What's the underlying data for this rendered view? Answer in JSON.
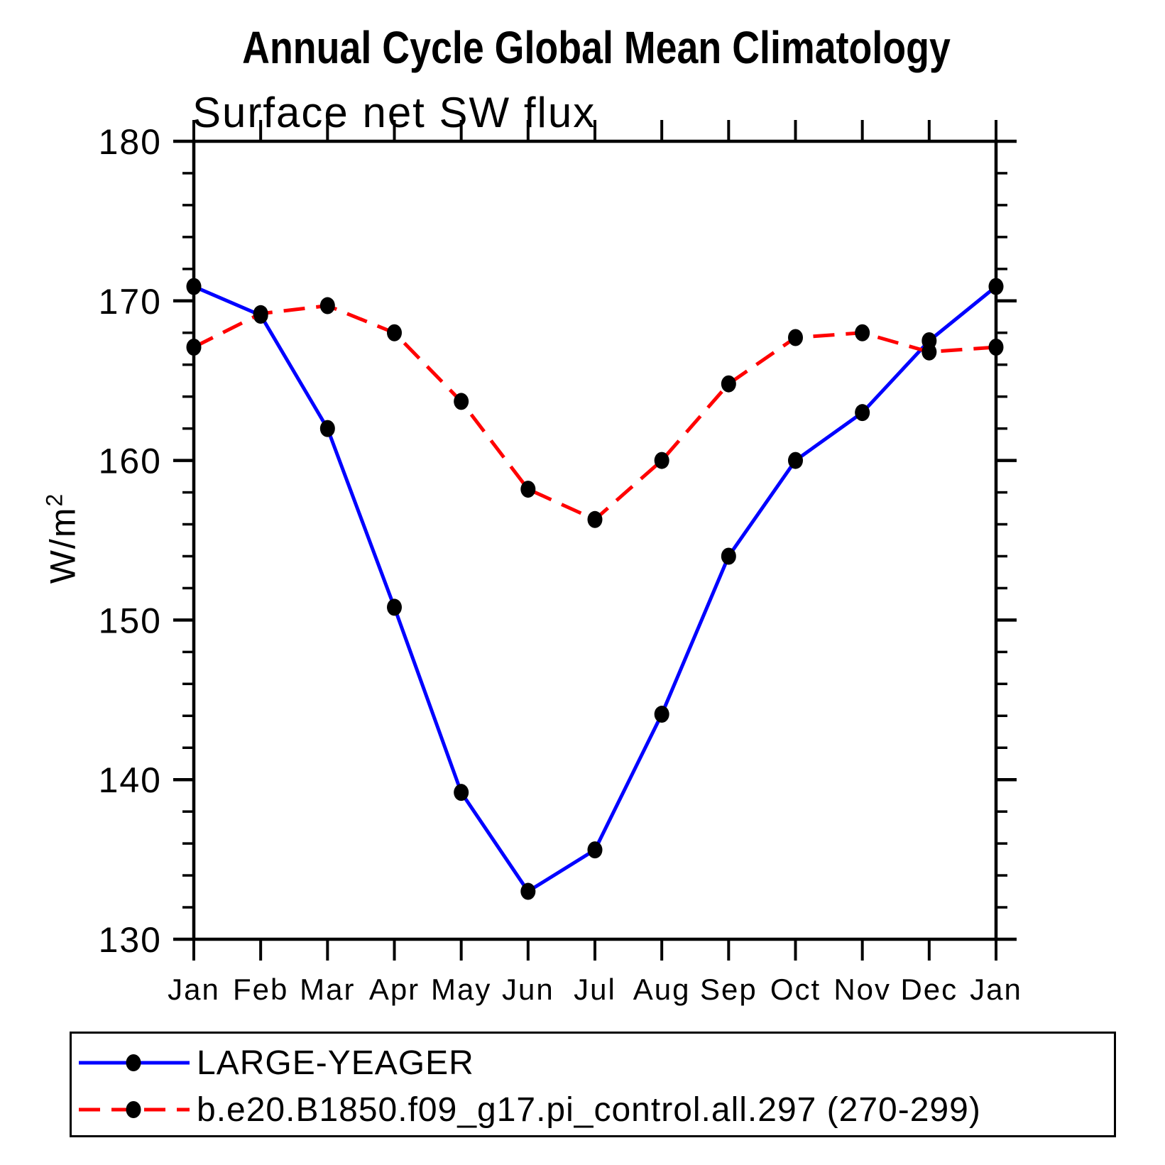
{
  "title": "Annual Cycle Global Mean Climatology",
  "subtitle": "Surface net SW flux",
  "y_axis": {
    "label_base": "W/m",
    "label_exponent": "2",
    "tick_labels": [
      "180",
      "170",
      "160",
      "150",
      "140",
      "130"
    ],
    "major_ticks": [
      180,
      170,
      160,
      150,
      140,
      130
    ],
    "minor_step": 2,
    "range": [
      130,
      180
    ]
  },
  "x_axis": {
    "labels": [
      "Jan",
      "Feb",
      "Mar",
      "Apr",
      "May",
      "Jun",
      "Jul",
      "Aug",
      "Sep",
      "Oct",
      "Nov",
      "Dec",
      "Jan"
    ]
  },
  "colors": {
    "series1": "#0000ff",
    "series2": "#ff0000",
    "marker": "#000000",
    "axis": "#000000"
  },
  "chart_data": {
    "type": "line",
    "x": [
      "Jan",
      "Feb",
      "Mar",
      "Apr",
      "May",
      "Jun",
      "Jul",
      "Aug",
      "Sep",
      "Oct",
      "Nov",
      "Dec",
      "Jan"
    ],
    "series": [
      {
        "name": "LARGE-YEAGER",
        "color": "#0000ff",
        "line_style": "solid",
        "marker": "filled-circle",
        "values": [
          170.9,
          169.1,
          162.0,
          150.8,
          139.2,
          133.0,
          135.6,
          144.1,
          154.0,
          160.0,
          163.0,
          167.5,
          170.9
        ]
      },
      {
        "name": "b.e20.B1850.f09_g17.pi_control.all.297 (270-299)",
        "color": "#ff0000",
        "line_style": "dashed",
        "marker": "filled-circle",
        "values": [
          167.1,
          169.2,
          169.7,
          168.0,
          163.7,
          158.2,
          156.3,
          160.0,
          164.8,
          167.7,
          168.0,
          166.8,
          167.1
        ]
      }
    ],
    "title": "Annual Cycle Global Mean Climatology",
    "subtitle": "Surface net SW flux",
    "ylabel": "W/m^2",
    "ylim": [
      130,
      180
    ],
    "grid": false,
    "legend_position": "bottom"
  }
}
